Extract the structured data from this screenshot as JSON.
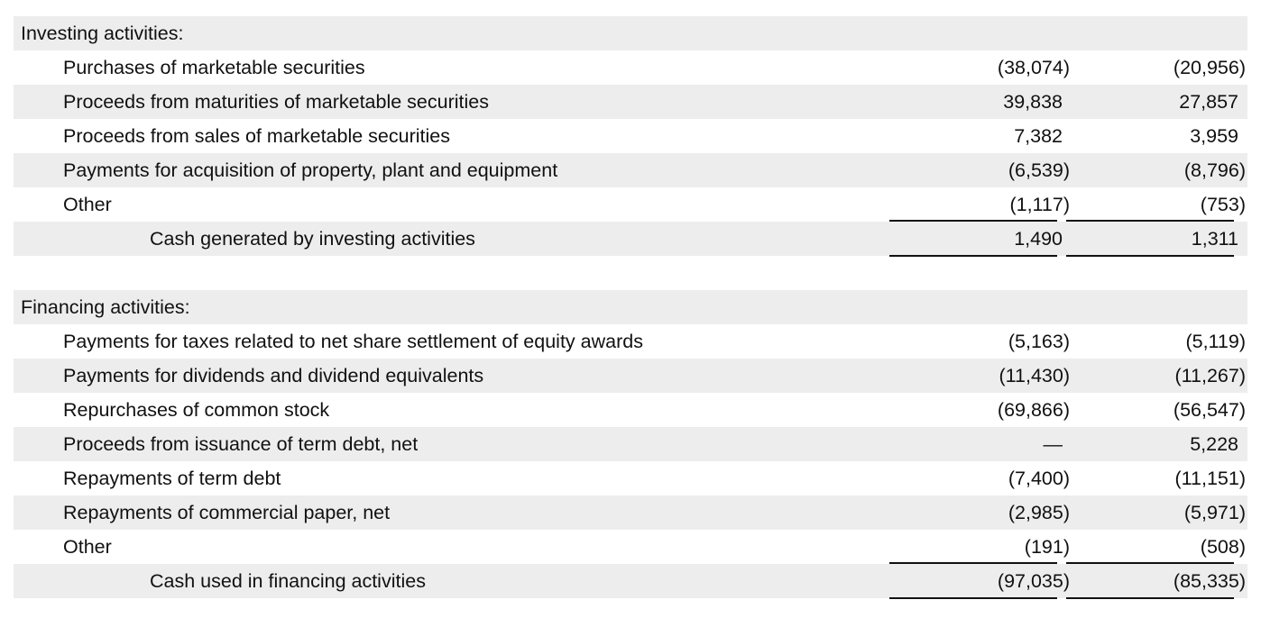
{
  "investing": {
    "header": "Investing activities:",
    "items": [
      {
        "label": "Purchases of marketable securities",
        "col1": "(38,074)",
        "col2": "(20,956)"
      },
      {
        "label": "Proceeds from maturities of marketable securities",
        "col1": "39,838",
        "col2": "27,857"
      },
      {
        "label": "Proceeds from sales of marketable securities",
        "col1": "7,382",
        "col2": "3,959"
      },
      {
        "label": "Payments for acquisition of property, plant and equipment",
        "col1": "(6,539)",
        "col2": "(8,796)"
      },
      {
        "label": "Other",
        "col1": "(1,117)",
        "col2": "(753)"
      }
    ],
    "total": {
      "label": "Cash generated by investing activities",
      "col1": "1,490",
      "col2": "1,311"
    }
  },
  "financing": {
    "header": "Financing activities:",
    "items": [
      {
        "label": "Payments for taxes related to net share settlement of equity awards",
        "col1": "(5,163)",
        "col2": "(5,119)"
      },
      {
        "label": "Payments for dividends and dividend equivalents",
        "col1": "(11,430)",
        "col2": "(11,267)"
      },
      {
        "label": "Repurchases of common stock",
        "col1": "(69,866)",
        "col2": "(56,547)"
      },
      {
        "label": "Proceeds from issuance of term debt, net",
        "col1": "—",
        "col2": "5,228"
      },
      {
        "label": "Repayments of term debt",
        "col1": "(7,400)",
        "col2": "(11,151)"
      },
      {
        "label": "Repayments of commercial paper, net",
        "col1": "(2,985)",
        "col2": "(5,971)"
      },
      {
        "label": "Other",
        "col1": "(191)",
        "col2": "(508)"
      }
    ],
    "total": {
      "label": "Cash used in financing activities",
      "col1": "(97,035)",
      "col2": "(85,335)"
    }
  }
}
